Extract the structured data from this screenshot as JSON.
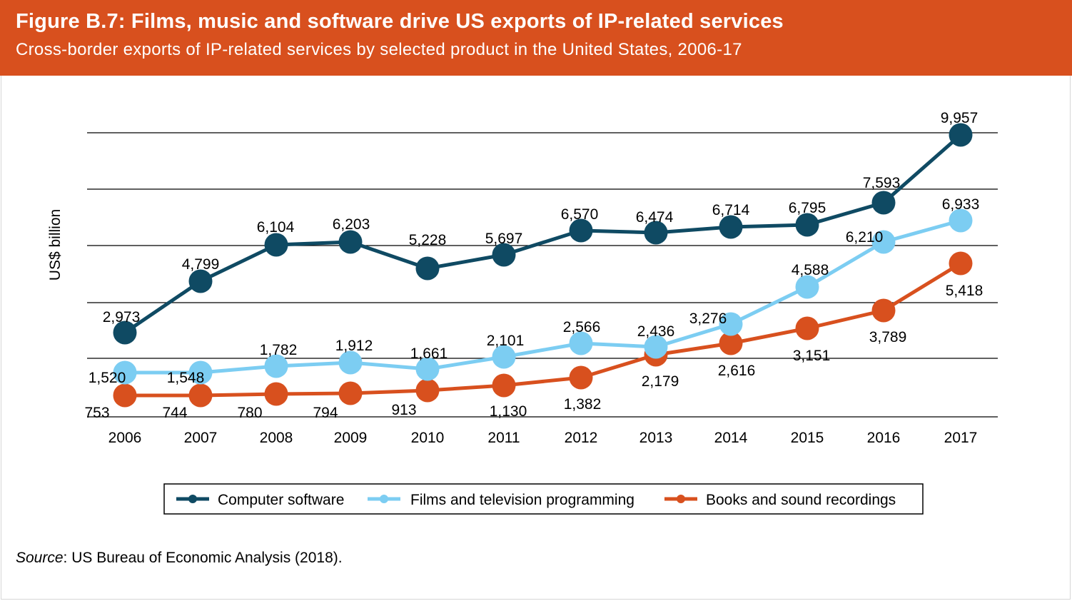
{
  "header": {
    "title": "Figure B.7: Films, music and software drive US exports of IP-related services",
    "subtitle": "Cross-border exports of IP-related services by selected product in the United States, 2006-17"
  },
  "source": {
    "label": "Source",
    "text": ": US Bureau of Economic Analysis (2018)."
  },
  "colors": {
    "banner": "#d8501e",
    "computer_software": "#0f4a63",
    "films_tv": "#7ccdf2",
    "books_sound": "#d8501e"
  },
  "chart_data": {
    "type": "line",
    "title": "Figure B.7: Films, music and software drive US exports of IP-related services",
    "subtitle": "Cross-border exports of IP-related services by selected product in the United States, 2006-17",
    "ylabel": "US$ billion",
    "xlabel": "",
    "categories": [
      "2006",
      "2007",
      "2008",
      "2009",
      "2010",
      "2011",
      "2012",
      "2013",
      "2014",
      "2015",
      "2016",
      "2017"
    ],
    "ylim": [
      0,
      10000
    ],
    "grid": true,
    "legend_position": "bottom",
    "series": [
      {
        "name": "Computer software",
        "color": "#0f4a63",
        "values": [
          2973,
          4799,
          6104,
          6203,
          5228,
          5697,
          6570,
          6474,
          6714,
          6795,
          7593,
          9957
        ],
        "labels": [
          "2,973",
          "4,799",
          "6,104",
          "6,203",
          "5,228",
          "5,697",
          "6,570",
          "6,474",
          "6,714",
          "6,795",
          "7,593",
          "9,957"
        ]
      },
      {
        "name": "Films and television programming",
        "color": "#7ccdf2",
        "values": [
          1520,
          1548,
          1782,
          1912,
          1661,
          2101,
          2566,
          2436,
          3276,
          4588,
          6210,
          6933
        ],
        "labels": [
          "1,520",
          "1,548",
          "1,782",
          "1,912",
          "1,661",
          "2,101",
          "2,566",
          "2,436",
          "3,276",
          "4,588",
          "6,210",
          "6,933"
        ]
      },
      {
        "name": "Books and sound recordings",
        "color": "#d8501e",
        "values": [
          753,
          744,
          780,
          794,
          913,
          1130,
          1382,
          2179,
          2616,
          3151,
          3789,
          5418
        ],
        "labels": [
          "753",
          "744",
          "780",
          "794",
          "913",
          "1,130",
          "1,382",
          "2,179",
          "2,616",
          "3,151",
          "3,789",
          "5,418"
        ]
      }
    ]
  }
}
